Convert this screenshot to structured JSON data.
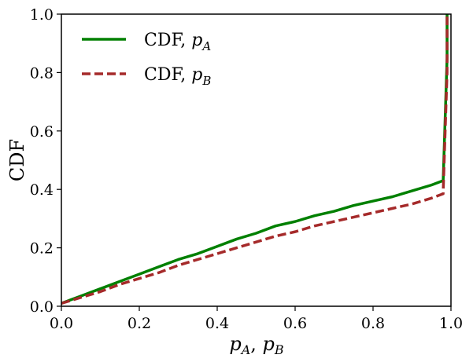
{
  "chart_data": {
    "type": "line",
    "title": "",
    "xlabel_main": "p",
    "xlabel_sub_a": "A",
    "xlabel_sep": ", ",
    "xlabel_sub_b": "B",
    "ylabel": "CDF",
    "xlim": [
      0.0,
      1.0
    ],
    "ylim": [
      0.0,
      1.0
    ],
    "x_ticks": [
      "0.0",
      "0.2",
      "0.4",
      "0.6",
      "0.8",
      "1.0"
    ],
    "y_ticks": [
      "0.0",
      "0.2",
      "0.4",
      "0.6",
      "0.8",
      "1.0"
    ],
    "grid": false,
    "legend_position": "top-left",
    "series": [
      {
        "name": "CDF, pA",
        "label_prefix": "CDF, ",
        "label_var": "p",
        "label_sub": "A",
        "color": "#008000",
        "style": "solid",
        "x": [
          0.0,
          0.02,
          0.05,
          0.1,
          0.15,
          0.2,
          0.25,
          0.3,
          0.35,
          0.4,
          0.45,
          0.5,
          0.55,
          0.6,
          0.65,
          0.7,
          0.75,
          0.8,
          0.85,
          0.9,
          0.95,
          0.98,
          0.98,
          0.99,
          0.99
        ],
        "y": [
          0.01,
          0.02,
          0.035,
          0.06,
          0.085,
          0.11,
          0.135,
          0.16,
          0.18,
          0.205,
          0.23,
          0.25,
          0.275,
          0.29,
          0.31,
          0.325,
          0.345,
          0.36,
          0.375,
          0.395,
          0.415,
          0.43,
          0.43,
          0.85,
          1.0
        ]
      },
      {
        "name": "CDF, pB",
        "label_prefix": "CDF, ",
        "label_var": "p",
        "label_sub": "B",
        "color": "#a52a2a",
        "style": "dashed",
        "x": [
          0.0,
          0.02,
          0.05,
          0.1,
          0.15,
          0.2,
          0.25,
          0.3,
          0.35,
          0.4,
          0.45,
          0.5,
          0.55,
          0.6,
          0.65,
          0.7,
          0.75,
          0.8,
          0.85,
          0.9,
          0.95,
          0.98,
          0.98,
          0.99,
          0.99
        ],
        "y": [
          0.01,
          0.018,
          0.03,
          0.05,
          0.075,
          0.095,
          0.115,
          0.14,
          0.16,
          0.18,
          0.2,
          0.22,
          0.24,
          0.255,
          0.275,
          0.29,
          0.305,
          0.32,
          0.335,
          0.35,
          0.37,
          0.385,
          0.39,
          0.8,
          1.0
        ]
      }
    ]
  }
}
